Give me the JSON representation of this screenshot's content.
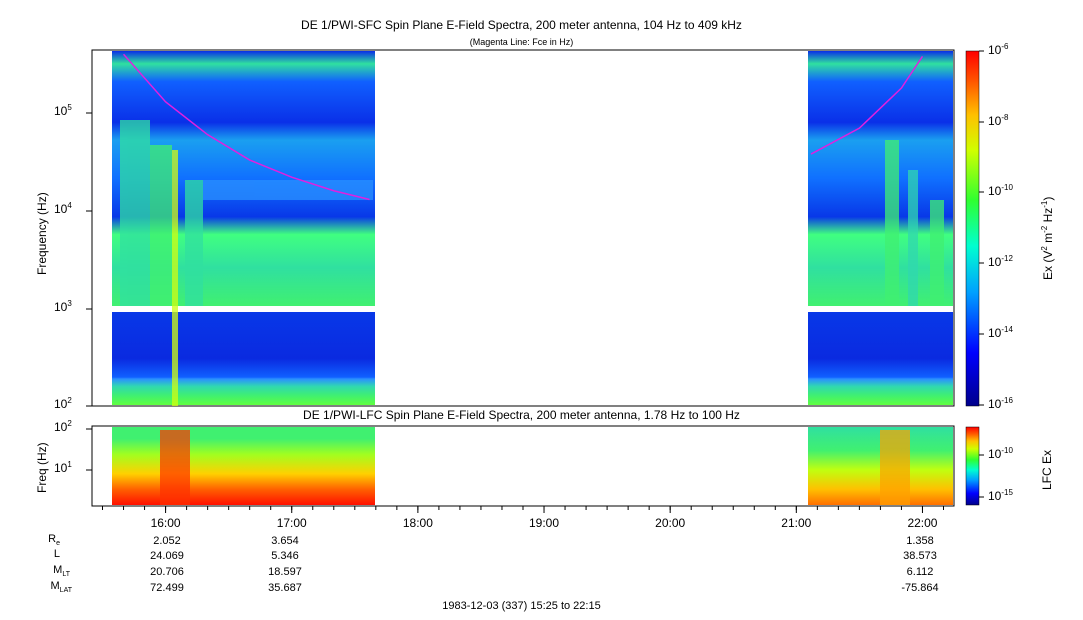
{
  "header": {
    "title": "DE 1/PWI-SFC  Spin Plane E-Field Spectra, 200 meter antenna, 104 Hz to 409 kHz",
    "subtitle": "(Magenta Line: Fce in Hz)"
  },
  "chart_data": [
    {
      "type": "heatmap",
      "title": "DE 1/PWI-SFC  Spin Plane E-Field Spectra, 200 meter antenna, 104 Hz to 409 kHz",
      "subtitle": "(Magenta Line: Fce in Hz)",
      "ylabel": "Frequency (Hz)",
      "yscale": "log",
      "ylim": [
        100,
        409000
      ],
      "y_ticks": [
        "10^2",
        "10^3",
        "10^4",
        "10^5"
      ],
      "colorbar": {
        "label": "Ex (V^2 m^-2 Hz^-1)",
        "label_base": "Ex (V",
        "label_mid": " m",
        "label_mid2": " Hz",
        "label_end": ")",
        "label_sup1": "2",
        "label_sup2": "-2",
        "label_sup3": "-1",
        "scale": "log",
        "range": [
          1e-16,
          1e-06
        ],
        "ticks": [
          "10^-6",
          "10^-8",
          "10^-10",
          "10^-12",
          "10^-14",
          "10^-16"
        ],
        "tick_bases": [
          "10",
          "10",
          "10",
          "10",
          "10",
          "10"
        ],
        "tick_exps": [
          "-6",
          "-8",
          "-10",
          "-12",
          "-14",
          "-16"
        ]
      },
      "data_coverage": [
        {
          "start": "15:35",
          "end": "17:40"
        },
        {
          "start": "21:07",
          "end": "22:15"
        }
      ],
      "fce_line": [
        {
          "time": "15:40",
          "freq_hz": 400000
        },
        {
          "time": "16:00",
          "freq_hz": 130000
        },
        {
          "time": "16:20",
          "freq_hz": 60000
        },
        {
          "time": "16:40",
          "freq_hz": 33000
        },
        {
          "time": "17:00",
          "freq_hz": 22000
        },
        {
          "time": "17:20",
          "freq_hz": 16000
        },
        {
          "time": "17:37",
          "freq_hz": 13000
        },
        {
          "time": "21:07",
          "freq_hz": 38000
        },
        {
          "time": "21:30",
          "freq_hz": 70000
        },
        {
          "time": "21:50",
          "freq_hz": 180000
        },
        {
          "time": "22:00",
          "freq_hz": 380000
        }
      ]
    },
    {
      "type": "heatmap",
      "title": "DE 1/PWI-LFC  Spin Plane E-Field Spectra, 200 meter antenna, 1.78 Hz to 100 Hz",
      "ylabel": "Freq (Hz)",
      "yscale": "log",
      "ylim": [
        1.78,
        100
      ],
      "y_ticks": [
        "10^2",
        "10^1"
      ],
      "colorbar": {
        "label": "LFC Ex",
        "scale": "log",
        "ticks": [
          "10^-10",
          "10^-15"
        ],
        "tick_bases": [
          "10",
          "10"
        ],
        "tick_exps": [
          "-10",
          "-15"
        ]
      },
      "data_coverage": [
        {
          "start": "15:35",
          "end": "17:40"
        },
        {
          "start": "21:07",
          "end": "22:15"
        }
      ]
    }
  ],
  "lower_title": "DE 1/PWI-LFC  Spin Plane E-Field Spectra, 200 meter antenna, 1.78 Hz to 100 Hz",
  "time_axis": {
    "ticks": [
      "16:00",
      "17:00",
      "18:00",
      "19:00",
      "20:00",
      "21:00",
      "22:00"
    ],
    "footer": "1983-12-03 (337) 15:25 to 22:15"
  },
  "ephemeris": {
    "labels": [
      {
        "base": "R",
        "sub": "e"
      },
      {
        "base": "L",
        "sub": ""
      },
      {
        "base": "M",
        "sub": "LT"
      },
      {
        "base": "M",
        "sub": "LAT"
      }
    ],
    "columns": [
      {
        "time": "16:00",
        "values": [
          "2.052",
          "24.069",
          "20.706",
          "72.499"
        ]
      },
      {
        "time": "17:00",
        "values": [
          "3.654",
          "5.346",
          "18.597",
          "35.687"
        ]
      },
      {
        "time": "22:00",
        "values": [
          "1.358",
          "38.573",
          "6.112",
          "-75.864"
        ]
      }
    ]
  },
  "colors": {
    "fce_line": "#e020e0",
    "background": "#ffffff"
  }
}
